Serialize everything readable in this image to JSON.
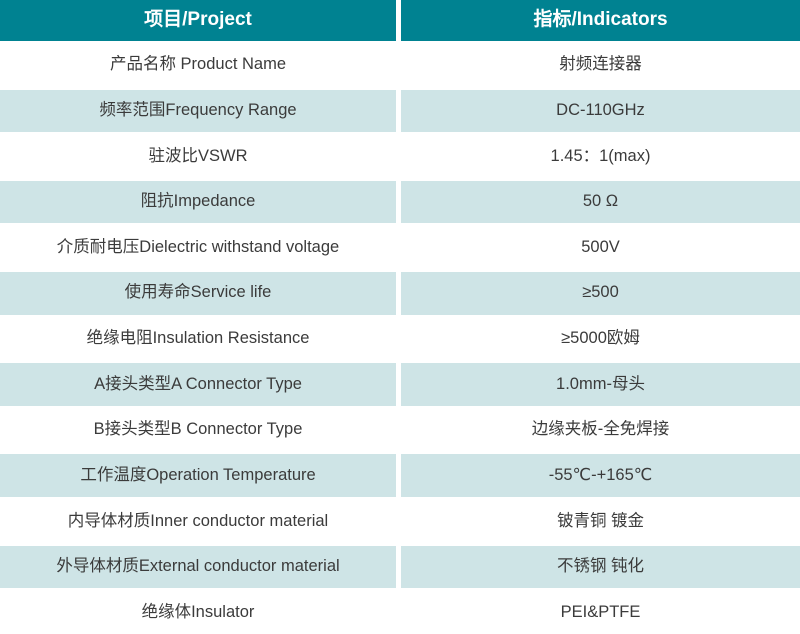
{
  "table": {
    "colors": {
      "header_bg": "#008291",
      "header_text": "#ffffff",
      "row_bg": "#ffffff",
      "row_alt_bg": "#cee4e6",
      "cell_text": "#3b3b3b",
      "divider": "#ffffff"
    },
    "header": {
      "col1": "项目/Project",
      "col2": "指标/Indicators"
    },
    "rows": [
      {
        "project": "产品名称 Product Name",
        "indicator": "射频连接器"
      },
      {
        "project": "频率范围Frequency Range",
        "indicator": "DC-110GHz"
      },
      {
        "project": "驻波比VSWR",
        "indicator": "1.45：1(max)"
      },
      {
        "project": "阻抗Impedance",
        "indicator": "50 Ω"
      },
      {
        "project": "介质耐电压Dielectric withstand voltage",
        "indicator": "500V"
      },
      {
        "project": "使用寿命Service life",
        "indicator": "≥500"
      },
      {
        "project": "绝缘电阻Insulation Resistance",
        "indicator": "≥5000欧姆"
      },
      {
        "project": "A接头类型A Connector Type",
        "indicator": "1.0mm-母头"
      },
      {
        "project": "B接头类型B Connector Type",
        "indicator": "边缘夹板-全免焊接"
      },
      {
        "project": "工作温度Operation Temperature",
        "indicator": "-55℃-+165℃"
      },
      {
        "project": "内导体材质Inner conductor material",
        "indicator": "铍青铜 镀金"
      },
      {
        "project": "外导体材质External conductor material",
        "indicator": "不锈钢 钝化"
      },
      {
        "project": "绝缘体Insulator",
        "indicator": "PEI&PTFE"
      }
    ]
  }
}
